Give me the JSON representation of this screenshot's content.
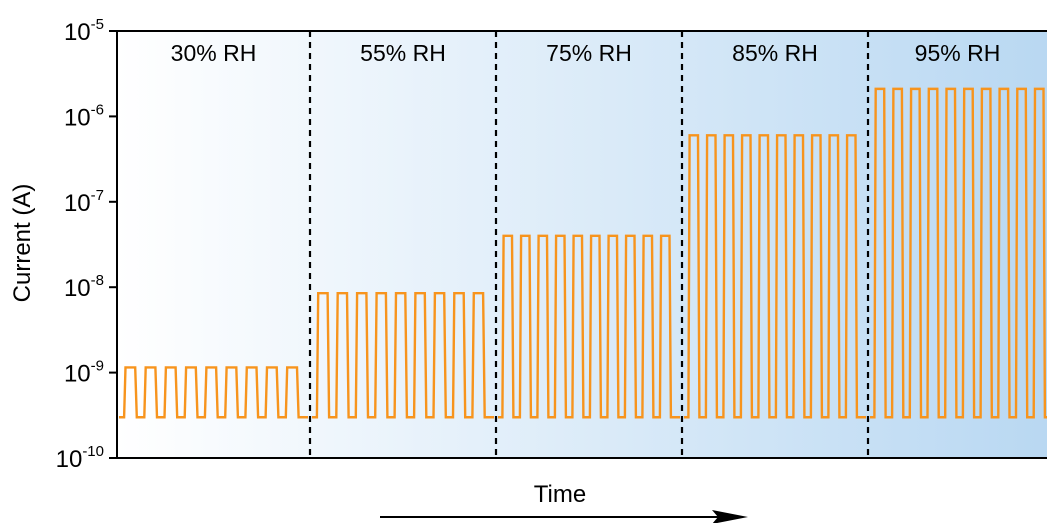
{
  "chart_data": {
    "type": "line",
    "xlabel": "Time",
    "ylabel": "Current (A)",
    "yscale": "log",
    "ylim": [
      1e-10,
      1e-05
    ],
    "y_ticks": [
      {
        "value": 1e-10,
        "base": "10",
        "exp": "-10"
      },
      {
        "value": 1e-09,
        "base": "10",
        "exp": "-9"
      },
      {
        "value": 1e-08,
        "base": "10",
        "exp": "-8"
      },
      {
        "value": 1e-07,
        "base": "10",
        "exp": "-7"
      },
      {
        "value": 1e-06,
        "base": "10",
        "exp": "-6"
      },
      {
        "value": 1e-05,
        "base": "10",
        "exp": "-5"
      }
    ],
    "grid": false,
    "x_axis_arrow": true,
    "line_color": "#F7941D",
    "divider_style": "dashed",
    "background_gradient": [
      "#FFFFFF",
      "#B9D8F2"
    ],
    "segments": [
      {
        "label": "30% RH",
        "low": 3e-10,
        "high": 1.15e-09,
        "cycles": 9
      },
      {
        "label": "55% RH",
        "low": 3e-10,
        "high": 8.5e-09,
        "cycles": 9
      },
      {
        "label": "75% RH",
        "low": 3e-10,
        "high": 4e-08,
        "cycles": 10
      },
      {
        "label": "85% RH",
        "low": 3e-10,
        "high": 6e-07,
        "cycles": 10
      },
      {
        "label": "95% RH",
        "low": 3e-10,
        "high": 2.1e-06,
        "cycles": 10
      }
    ]
  }
}
